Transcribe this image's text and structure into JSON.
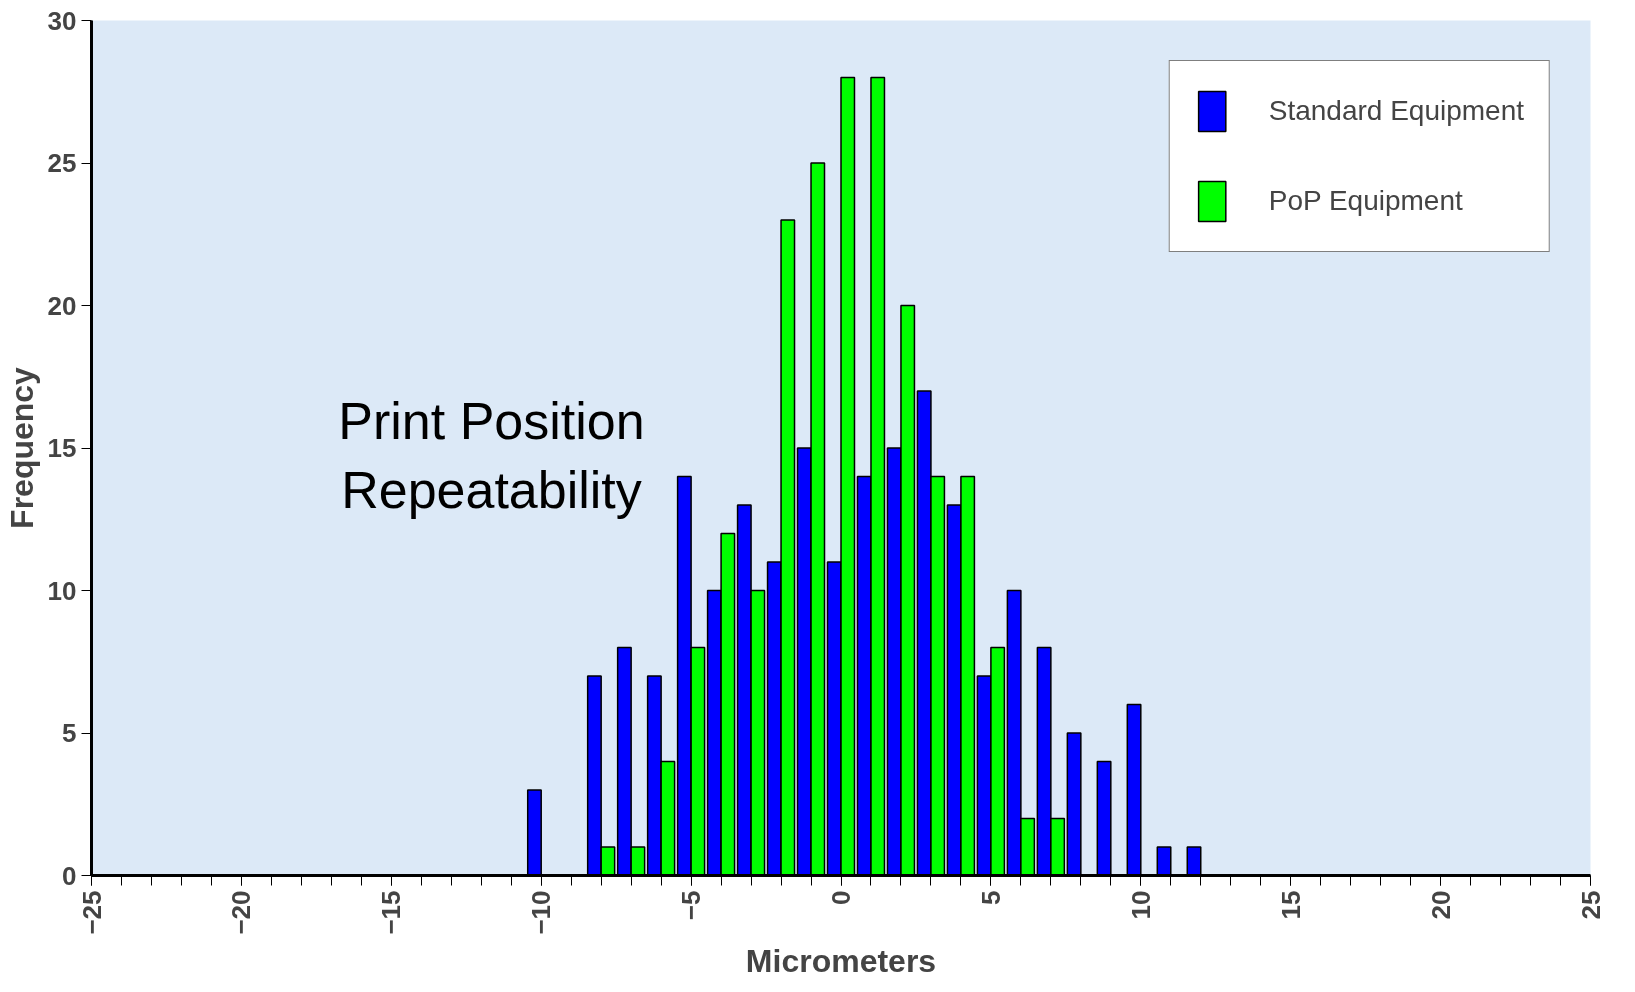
{
  "chart_data": {
    "type": "bar",
    "xlabel": "Micrometers",
    "ylabel": "Frequency",
    "x": [
      -10,
      -9,
      -8,
      -7,
      -6,
      -5,
      -4,
      -3,
      -2,
      -1,
      0,
      1,
      2,
      3,
      4,
      5,
      6,
      7,
      8,
      9,
      10,
      11,
      12
    ],
    "series": [
      {
        "name": "Standard Equipment",
        "color": "#0000ff",
        "values": [
          3,
          null,
          7,
          8,
          7,
          14,
          10,
          13,
          11,
          15,
          11,
          14,
          15,
          17,
          13,
          7,
          10,
          8,
          5,
          4,
          6,
          1,
          1
        ]
      },
      {
        "name": "PoP Equipment",
        "color": "#00ff00",
        "values": [
          null,
          null,
          1,
          1,
          4,
          8,
          12,
          10,
          23,
          25,
          28,
          28,
          20,
          14,
          14,
          8,
          2,
          2,
          null,
          null,
          null,
          null,
          null
        ]
      }
    ],
    "xlim": [
      -25,
      25
    ],
    "xticks": [
      -25,
      -20,
      -15,
      -10,
      -5,
      0,
      5,
      10,
      15,
      20,
      25
    ],
    "ylim": [
      0,
      30
    ],
    "yticks": [
      0,
      5,
      10,
      15,
      20,
      25,
      30
    ],
    "grid": false,
    "legend": "top right",
    "annotations": [
      "Print Position\nRepeatability"
    ]
  }
}
